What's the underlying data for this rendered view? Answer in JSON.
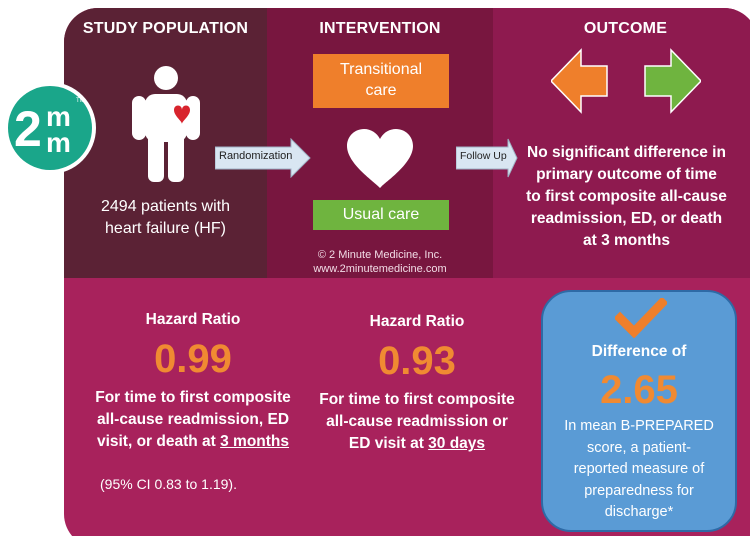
{
  "study_population": {
    "heading": "STUDY POPULATION",
    "line1": "2494 patients with",
    "line2": "heart failure (HF)"
  },
  "intervention": {
    "heading": "INTERVENTION",
    "transitional_line1": "Transitional",
    "transitional_line2": "care",
    "usual_care": "Usual care",
    "copyright_line1": "© 2 Minute Medicine, Inc.",
    "copyright_line2": "www.2minutemedicine.com"
  },
  "outcome": {
    "heading": "OUTCOME",
    "line1": "No significant difference in",
    "line2": "primary outcome of time",
    "line3": "to first composite all-cause",
    "line4": "readmission, ED, or death",
    "line5": "at 3 months"
  },
  "flow": {
    "randomization": "Randomization",
    "follow_up": "Follow Up"
  },
  "logo": {
    "text_2": "2",
    "text_m_top": "m",
    "text_m_bottom": "m",
    "trademark": "TM"
  },
  "hr_left": {
    "title": "Hazard Ratio",
    "value": "0.99",
    "line1": "For time to first composite",
    "line2": "all-cause readmission, ED",
    "line3_prefix": "visit, or death at ",
    "line3_emph": "3 months",
    "ci": "(95% CI 0.83 to 1.19)."
  },
  "hr_mid": {
    "title": "Hazard Ratio",
    "value": "0.93",
    "line1": "For time to first composite",
    "line2": "all-cause readmission or",
    "line3_prefix": "ED visit at ",
    "line3_emph": "30 days"
  },
  "difference": {
    "title": "Difference of",
    "value": "2.65",
    "line1": "In mean B-PREPARED",
    "line2": "score, a patient-",
    "line3": "reported measure of",
    "line4": "preparedness for",
    "line5": "discharge*"
  },
  "colors": {
    "accent_orange": "#f08a32",
    "arrow_orange": "#ef7f2b",
    "arrow_green": "#6fb43f",
    "logo_teal": "#1aa68a",
    "box_blue": "#5a9bd5",
    "heart_red": "#d8242d"
  }
}
